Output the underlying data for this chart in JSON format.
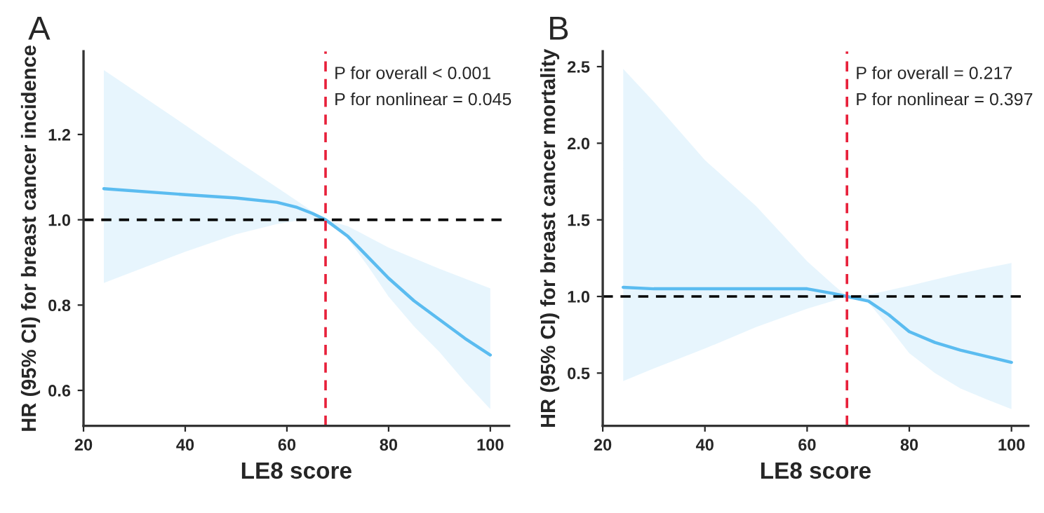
{
  "chart_data": [
    {
      "type": "line",
      "title": "A",
      "xlabel": "LE8 score",
      "ylabel": "HR (95% CI) for breast cancer incidence",
      "xlim": [
        20,
        103.7
      ],
      "xticks": [
        20,
        40,
        60,
        80,
        100
      ],
      "ylim": [
        0.517,
        1.395
      ],
      "yticks": [
        {
          "value": 0.6,
          "label": "0.6"
        },
        {
          "value": 0.8,
          "label": "0.8"
        },
        {
          "value": 1.0,
          "label": "1.0"
        },
        {
          "value": 1.2,
          "label": "1.2"
        }
      ],
      "series": [
        {
          "color": "#5bbcf0",
          "x": [
            24,
            40,
            50,
            58,
            62,
            65,
            67.6,
            72,
            76,
            80,
            85,
            90,
            95,
            100
          ],
          "values": [
            1.073,
            1.059,
            1.051,
            1.041,
            1.029,
            1.015,
            1.0,
            0.961,
            0.912,
            0.863,
            0.81,
            0.766,
            0.722,
            0.683
          ],
          "upper": [
            1.351,
            1.222,
            1.14,
            1.076,
            1.044,
            1.02,
            1.0,
            0.985,
            0.96,
            0.935,
            0.91,
            0.885,
            0.862,
            0.839
          ],
          "lower": [
            0.852,
            0.925,
            0.966,
            0.99,
            0.998,
            1.0,
            1.0,
            0.955,
            0.89,
            0.82,
            0.75,
            0.69,
            0.62,
            0.556
          ]
        }
      ],
      "ref_lines": [
        {
          "axis": "y",
          "value": 1.0,
          "color": "#000000",
          "line_style": "dashed"
        },
        {
          "axis": "x",
          "value": 67.6,
          "color": "#e8203a",
          "line_style": "dashed"
        }
      ],
      "annotations": [
        "P for overall < 0.001",
        "P for nonlinear = 0.045"
      ],
      "grid": false,
      "legend": false,
      "line_style": "solid",
      "marker": "none"
    },
    {
      "type": "line",
      "title": "B",
      "xlabel": "LE8 score",
      "ylabel": "HR (95% CI) for breast cancer mortality",
      "xlim": [
        20,
        103.3
      ],
      "xticks": [
        20,
        40,
        60,
        80,
        100
      ],
      "ylim": [
        0.156,
        2.6
      ],
      "yticks": [
        0.5,
        {
          "value": 1.0,
          "label": "1.0"
        },
        1.5,
        {
          "value": 2.0,
          "label": "2.0"
        },
        2.5
      ],
      "series": [
        {
          "color": "#5bbcf0",
          "x": [
            24,
            30,
            40,
            50,
            60,
            65,
            67.8,
            72,
            76,
            80,
            85,
            90,
            95,
            100
          ],
          "values": [
            1.06,
            1.05,
            1.05,
            1.05,
            1.05,
            1.02,
            1.0,
            0.97,
            0.88,
            0.77,
            0.7,
            0.65,
            0.61,
            0.57
          ],
          "upper": [
            2.486,
            2.27,
            1.89,
            1.59,
            1.23,
            1.08,
            1.0,
            1.01,
            1.04,
            1.07,
            1.11,
            1.15,
            1.185,
            1.219
          ],
          "lower": [
            0.448,
            0.53,
            0.66,
            0.8,
            0.92,
            0.97,
            1.0,
            0.96,
            0.8,
            0.63,
            0.5,
            0.4,
            0.33,
            0.265
          ]
        }
      ],
      "ref_lines": [
        {
          "axis": "y",
          "value": 1.0,
          "color": "#000000",
          "line_style": "dashed"
        },
        {
          "axis": "x",
          "value": 67.8,
          "color": "#e8203a",
          "line_style": "dashed"
        }
      ],
      "annotations": [
        "P for overall = 0.217",
        "P for nonlinear = 0.397"
      ],
      "grid": false,
      "legend": false,
      "line_style": "solid",
      "marker": "none"
    }
  ]
}
